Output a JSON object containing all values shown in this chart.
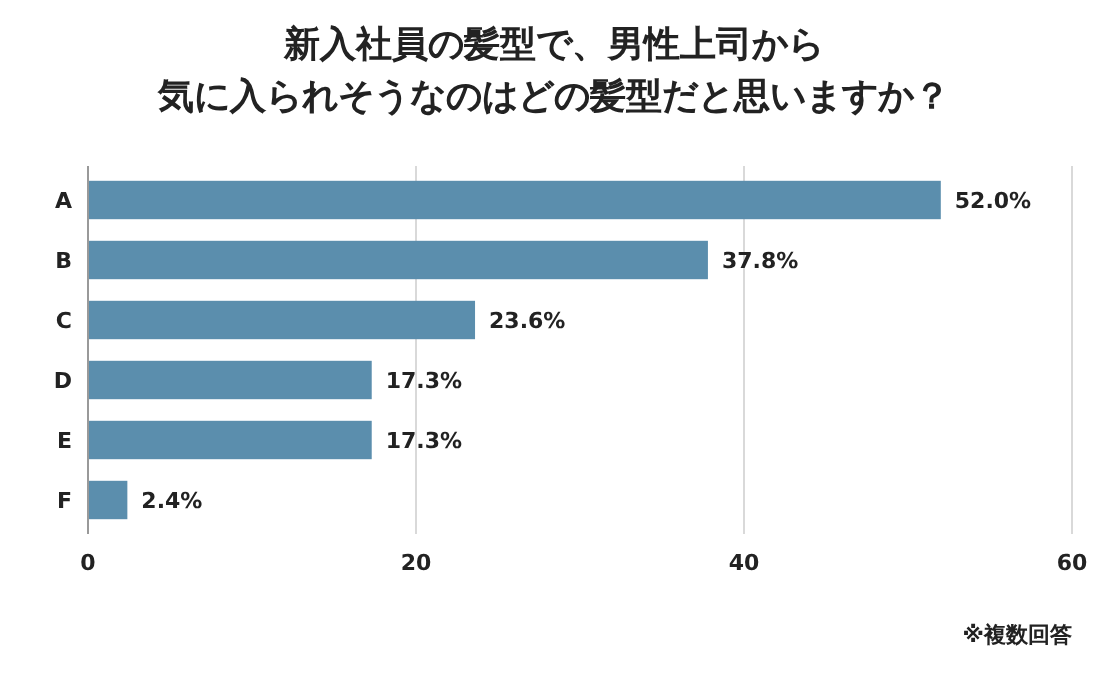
{
  "chart_data": {
    "type": "bar",
    "orientation": "horizontal",
    "title": "新入社員の髪型で、男性上司から",
    "subtitle": "気に入られそうなのはどの髪型だと思いますか？",
    "categories": [
      "A",
      "B",
      "C",
      "D",
      "E",
      "F"
    ],
    "values": [
      52.0,
      37.8,
      23.6,
      17.3,
      17.3,
      2.4
    ],
    "value_labels": [
      "52.0%",
      "37.8%",
      "23.6%",
      "17.3%",
      "17.3%",
      "2.4%"
    ],
    "color": "#5b8ead",
    "xlim": [
      0,
      60
    ],
    "xticks": [
      0,
      20,
      40,
      60
    ],
    "grid": "x",
    "annotations": [
      "※複数回答"
    ]
  }
}
